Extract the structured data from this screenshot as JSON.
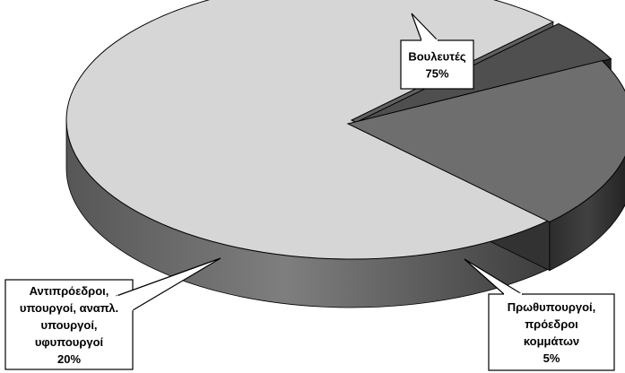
{
  "chart_data": {
    "type": "pie",
    "style": "3d-exploded-callouts",
    "title": "",
    "slices": [
      {
        "label_lines": [
          "Βουλευτές",
          "75%"
        ],
        "value": 75,
        "color": "#d6d6d6"
      },
      {
        "label_lines": [
          "Πρωθυπουργοί,",
          "πρόεδροι",
          "κομμάτων",
          "5%"
        ],
        "value": 5,
        "color": "#4f4f4f"
      },
      {
        "label_lines": [
          "Αντιπρόεδροι,",
          "υπουργοί, αναπλ.",
          "υπουργοί,",
          "υφυπουργοί",
          "20%"
        ],
        "value": 20,
        "color": "#6e6e6e"
      }
    ]
  }
}
